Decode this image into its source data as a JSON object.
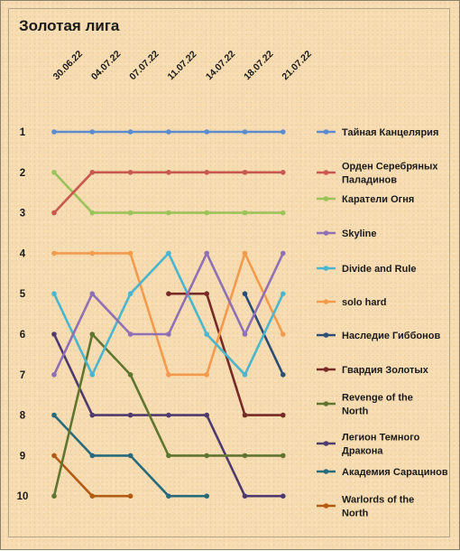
{
  "chart_data": {
    "type": "line",
    "title": "Золотая лига",
    "x": [
      "30.06.22",
      "04.07.22",
      "07.07.22",
      "11.07.22",
      "14.07.22",
      "18.07.22",
      "21.07.22"
    ],
    "ylim": [
      1,
      10
    ],
    "y_inverted": true,
    "yticks": [
      "1",
      "2",
      "3",
      "4",
      "5",
      "6",
      "7",
      "8",
      "9",
      "10"
    ],
    "legend_position": "right",
    "series": [
      {
        "name": "Тайная Канцелярия",
        "color": "#5b8bd0",
        "values": [
          1,
          1,
          1,
          1,
          1,
          1,
          1
        ]
      },
      {
        "name": "Орден Серебряных Паладинов",
        "color": "#c8584f",
        "values": [
          3,
          2,
          2,
          2,
          2,
          2,
          2
        ]
      },
      {
        "name": "Каратели Огня",
        "color": "#9cc25a",
        "values": [
          2,
          3,
          3,
          3,
          3,
          3,
          3
        ]
      },
      {
        "name": "Skyline",
        "color": "#8f6fb5",
        "values": [
          7,
          5,
          6,
          6,
          4,
          6,
          4
        ]
      },
      {
        "name": "Divide and Rule",
        "color": "#4ab5cf",
        "values": [
          5,
          7,
          5,
          4,
          6,
          7,
          5
        ]
      },
      {
        "name": "solo hard",
        "color": "#f49a4d",
        "values": [
          4,
          4,
          4,
          7,
          7,
          4,
          6
        ]
      },
      {
        "name": "Наследие Гиббонов",
        "color": "#2c4d75",
        "values": [
          null,
          null,
          null,
          null,
          null,
          5,
          7
        ]
      },
      {
        "name": "Гвардия Золотых",
        "color": "#772a26",
        "values": [
          null,
          null,
          null,
          5,
          5,
          8,
          8
        ]
      },
      {
        "name": "Revenge of the North",
        "color": "#5f7530",
        "values": [
          10,
          6,
          7,
          9,
          9,
          9,
          9
        ]
      },
      {
        "name": "Легион Темного Дракона",
        "color": "#4e3a6e",
        "values": [
          6,
          8,
          8,
          8,
          8,
          10,
          10
        ]
      },
      {
        "name": "Академия Сарацинов",
        "color": "#276a7c",
        "values": [
          8,
          9,
          9,
          10,
          10,
          null,
          null
        ]
      },
      {
        "name": "Warlords of the North",
        "color": "#b35b12",
        "values": [
          9,
          10,
          10,
          null,
          null,
          null,
          null
        ]
      }
    ]
  }
}
